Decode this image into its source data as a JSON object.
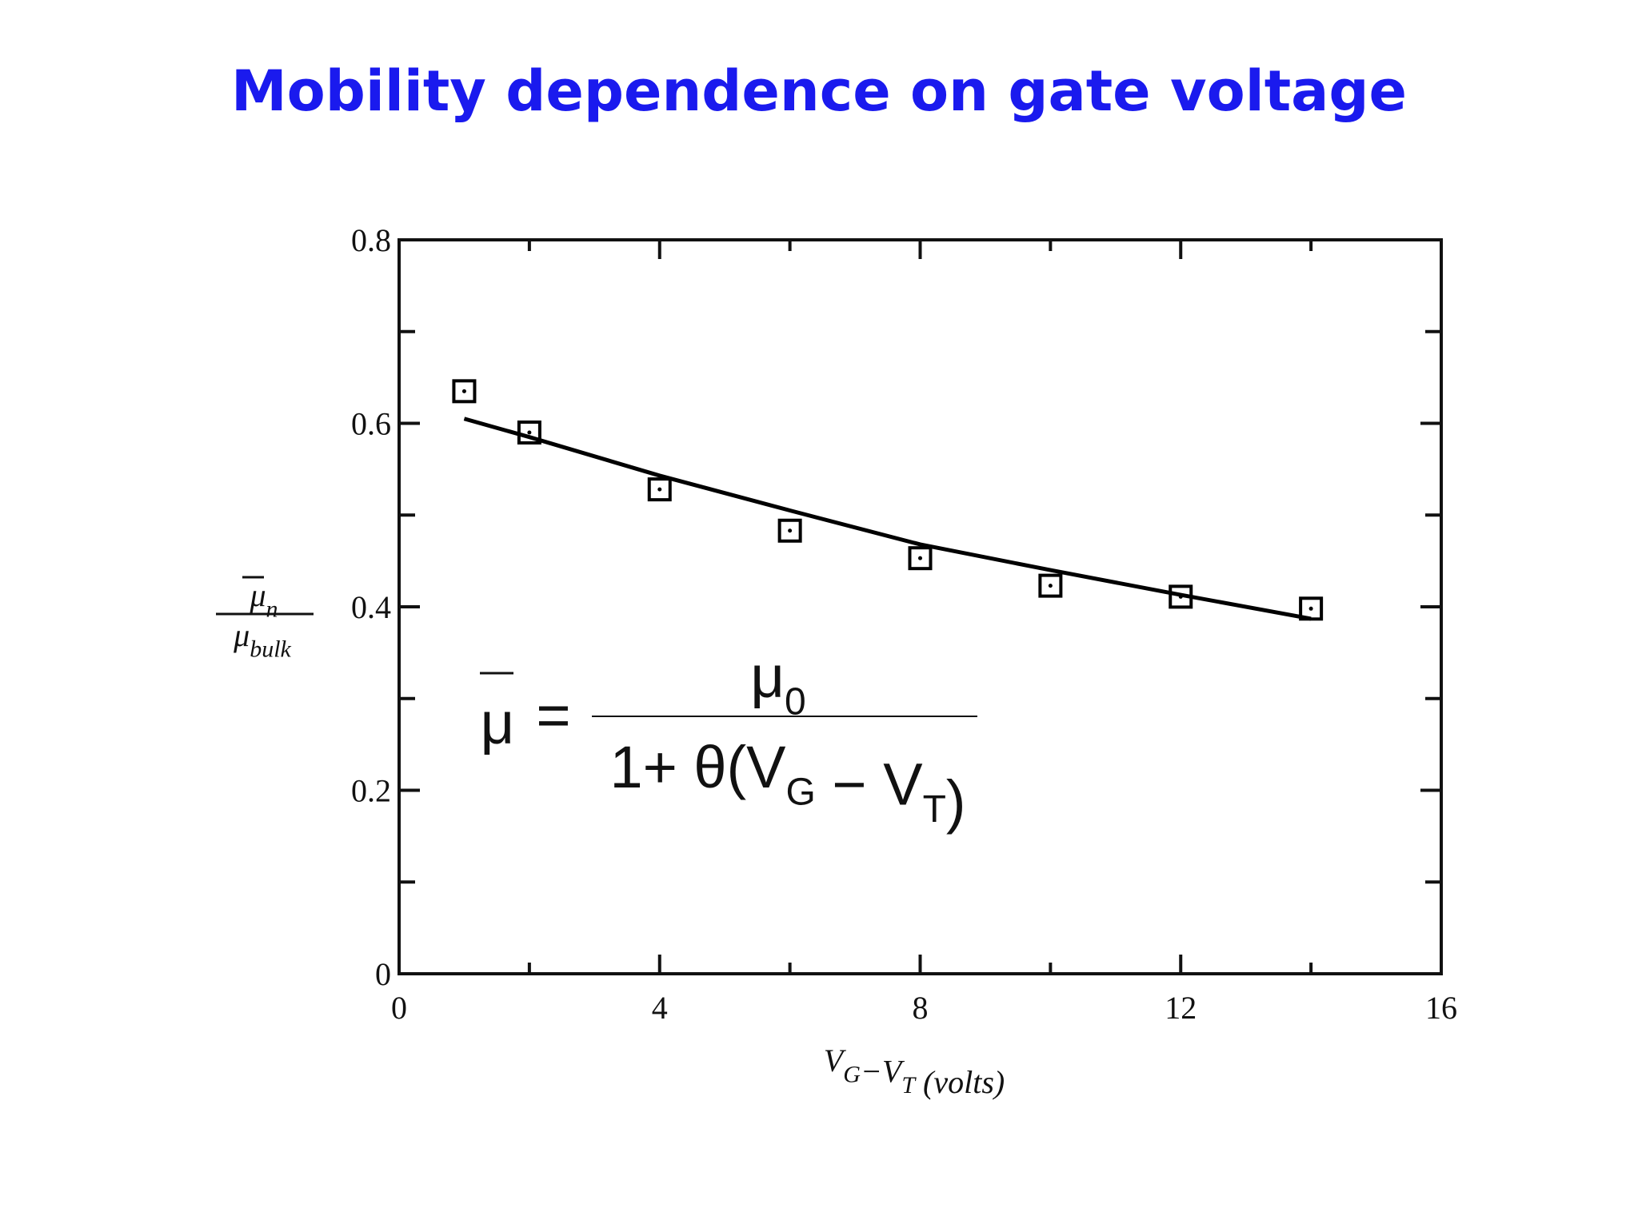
{
  "title": "Mobility dependence on gate voltage",
  "chart_data": {
    "type": "scatter",
    "xlabel": [
      {
        "base": "V",
        "sub": "G"
      },
      "−",
      {
        "base": "V",
        "sub": "T"
      },
      " (volts)"
    ],
    "ylabel": {
      "num": {
        "base": "μ",
        "sub": "n"
      },
      "den": {
        "base": "μ",
        "sub": "bulk"
      }
    },
    "xlim": [
      0,
      16
    ],
    "xticks": [
      0,
      4,
      8,
      12,
      16
    ],
    "xminorticks": [
      2,
      6,
      10,
      14
    ],
    "ylim": [
      0,
      0.8
    ],
    "yticks": [
      0,
      0.2,
      0.4,
      0.6,
      0.8
    ],
    "yminorticks": [
      0.1,
      0.3,
      0.5,
      0.7
    ],
    "series": [
      {
        "marker": "square",
        "color": "#000000",
        "x": [
          1,
          2,
          4,
          6,
          8,
          10,
          12,
          14
        ],
        "values": [
          0.635,
          0.59,
          0.528,
          0.483,
          0.453,
          0.423,
          0.411,
          0.398
        ]
      },
      {
        "line": true,
        "color": "#000000",
        "x": [
          1,
          2,
          4,
          6,
          8,
          10,
          12,
          14
        ],
        "values": [
          0.605,
          0.585,
          0.543,
          0.505,
          0.468,
          0.44,
          0.413,
          0.387
        ]
      }
    ],
    "annotation": {
      "lhs": "μ",
      "rel": "=",
      "num": {
        "base": "μ",
        "sub": "0"
      },
      "den": [
        "1+ θ(",
        {
          "base": "V",
          "sub": "G"
        },
        " − ",
        {
          "base": "V",
          "sub": "T"
        },
        ")"
      ]
    }
  }
}
